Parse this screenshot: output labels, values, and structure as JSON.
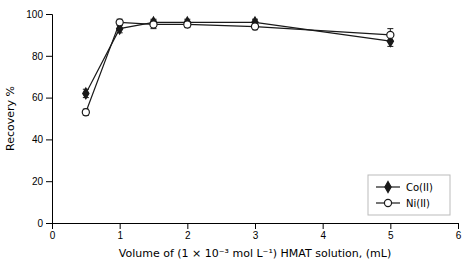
{
  "chart_data": {
    "type": "line",
    "xlabel": "Volume of (1 × 10⁻³ mol L⁻¹) HMAT solution, (mL)",
    "ylabel": "Recovery %",
    "x": [
      0.5,
      1.0,
      1.5,
      2.0,
      3.0,
      5.0
    ],
    "series": [
      {
        "name": "Co(II)",
        "color": "#1a1a1a",
        "marker": "diamond",
        "values": [
          62,
          93,
          96,
          96,
          96,
          87
        ],
        "errors": [
          2,
          2,
          1.5,
          1.5,
          1.5,
          2.5
        ]
      },
      {
        "name": "Ni(II)",
        "color": "#1a1a1a",
        "marker": "open-circle",
        "values": [
          53,
          96,
          95,
          95,
          94,
          90
        ],
        "errors": [
          1.5,
          1.5,
          2.0,
          1.5,
          1.5,
          3.0
        ]
      }
    ],
    "xlim": [
      0,
      6
    ],
    "ylim": [
      0,
      100
    ],
    "xticks": [
      0,
      1,
      2,
      3,
      4,
      5,
      6
    ],
    "yticks": [
      0,
      20,
      40,
      60,
      80,
      100
    ],
    "legend": "lower right",
    "grid": false
  }
}
